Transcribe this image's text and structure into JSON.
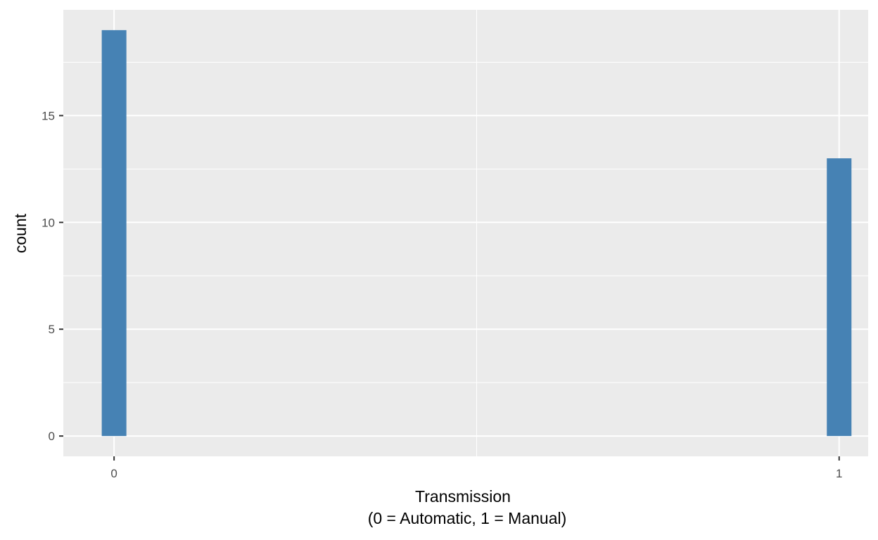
{
  "chart_data": {
    "type": "bar",
    "x": [
      0,
      1
    ],
    "values": [
      19,
      13
    ],
    "xlabel_lines": [
      "Transmission",
      "(0 = Automatic, 1 = Manual)"
    ],
    "ylabel": "count",
    "xlim": [
      -0.07,
      1.04
    ],
    "ylim": [
      -0.95,
      19.95
    ],
    "x_ticks": [
      0,
      1
    ],
    "x_tick_labels": [
      "0",
      "1"
    ],
    "y_ticks": [
      0,
      5,
      10,
      15
    ],
    "y_tick_labels": [
      "0",
      "5",
      "10",
      "15"
    ],
    "bar_width": 0.034,
    "grid": true,
    "colors": {
      "bar": "#4682b4",
      "panel": "#ebebeb",
      "grid": "#ffffff",
      "tick": "#333333"
    }
  }
}
